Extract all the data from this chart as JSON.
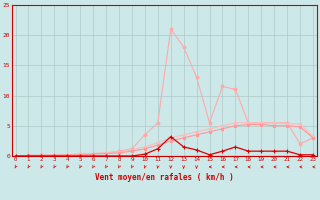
{
  "x": [
    0,
    1,
    2,
    3,
    4,
    5,
    6,
    7,
    8,
    9,
    10,
    11,
    12,
    13,
    14,
    15,
    16,
    17,
    18,
    19,
    20,
    21,
    22,
    23
  ],
  "series_rafales": [
    0.0,
    0.1,
    0.1,
    0.2,
    0.2,
    0.3,
    0.4,
    0.5,
    0.8,
    1.2,
    3.5,
    5.5,
    21.0,
    18.0,
    13.0,
    5.5,
    11.5,
    11.0,
    5.5,
    5.5,
    5.5,
    5.5,
    2.0,
    3.0
  ],
  "series_moyen_high": [
    0.0,
    0.1,
    0.1,
    0.2,
    0.2,
    0.3,
    0.4,
    0.5,
    0.7,
    1.0,
    1.5,
    2.2,
    3.0,
    3.5,
    4.0,
    4.5,
    5.0,
    5.5,
    5.5,
    5.5,
    5.5,
    5.3,
    5.3,
    3.2
  ],
  "series_moyen_low": [
    0.0,
    0.1,
    0.1,
    0.1,
    0.2,
    0.2,
    0.3,
    0.4,
    0.5,
    0.8,
    1.2,
    1.8,
    2.5,
    3.0,
    3.5,
    4.0,
    4.5,
    5.0,
    5.2,
    5.2,
    5.0,
    5.0,
    4.8,
    3.0
  ],
  "series_dark": [
    0.0,
    0.0,
    0.0,
    0.0,
    0.0,
    0.0,
    0.0,
    0.0,
    0.0,
    0.0,
    0.3,
    1.2,
    3.2,
    1.5,
    1.0,
    0.2,
    0.8,
    1.5,
    0.8,
    0.8,
    0.8,
    0.8,
    0.2,
    0.2
  ],
  "xlim": [
    0,
    23
  ],
  "ylim": [
    0,
    25
  ],
  "xlabel": "Vent moyen/en rafales ( km/h )",
  "yticks": [
    0,
    5,
    10,
    15,
    20,
    25
  ],
  "xticks": [
    0,
    1,
    2,
    3,
    4,
    5,
    6,
    7,
    8,
    9,
    10,
    11,
    12,
    13,
    14,
    15,
    16,
    17,
    18,
    19,
    20,
    21,
    22,
    23
  ],
  "bg_color": "#cce8e8",
  "grid_color": "#b0c8c8",
  "line_rafales": "#ffaaaa",
  "line_moyen_high": "#ffbbbb",
  "line_moyen_low": "#ff9999",
  "line_dark": "#dd0000",
  "axis_color": "#cc0000",
  "label_color": "#cc0000",
  "arrow_angles": [
    225,
    225,
    225,
    225,
    225,
    225,
    225,
    225,
    225,
    225,
    210,
    200,
    180,
    180,
    180,
    270,
    270,
    270,
    270,
    270,
    270,
    270,
    270,
    270
  ]
}
